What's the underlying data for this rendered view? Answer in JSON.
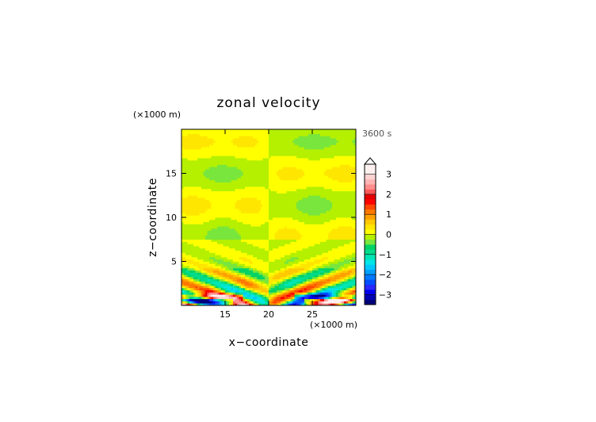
{
  "chart_data": {
    "type": "heatmap",
    "title": "zonal velocity",
    "xlabel": "x−coordinate",
    "ylabel": "z−coordinate",
    "x_unit": "(×1000 m)",
    "y_unit": "(×1000 m)",
    "time_label": "3600 s",
    "xlim": [
      10,
      30
    ],
    "ylim": [
      0,
      20
    ],
    "x_ticks": [
      "15",
      "20",
      "25"
    ],
    "y_ticks": [
      "5",
      "10",
      "15"
    ],
    "x_tick_values": [
      15,
      20,
      25
    ],
    "y_tick_values": [
      5,
      10,
      15
    ],
    "colorbar": {
      "range": [
        -3.5,
        3.5
      ],
      "step": 0.25,
      "extend": "max",
      "tick_labels": [
        "3",
        "2",
        "1",
        "0",
        "−1",
        "−2",
        "−3"
      ],
      "tick_values": [
        3,
        2,
        1,
        0,
        -1,
        -2,
        -3
      ]
    },
    "palette": [
      "#00007a",
      "#0000b4",
      "#0000f0",
      "#2828ff",
      "#0050ff",
      "#0078ff",
      "#00a0ff",
      "#00c8ff",
      "#00e6e6",
      "#00e6b4",
      "#00dc8c",
      "#00d264",
      "#78e63c",
      "#b4f000",
      "#ffff00",
      "#ffe600",
      "#ffc800",
      "#ffa000",
      "#ff7800",
      "#ff4600",
      "#ff0000",
      "#e60000",
      "#ff5a5a",
      "#ff8c8c",
      "#ffb4b4",
      "#ffd2d2",
      "#fff0f0"
    ]
  }
}
